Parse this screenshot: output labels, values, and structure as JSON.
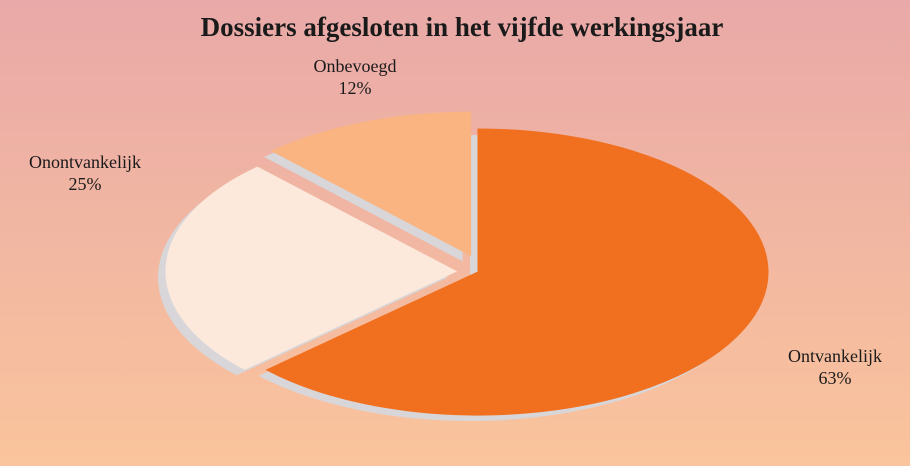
{
  "chart_data": {
    "type": "pie",
    "title": "Dossiers afgesloten in het vijfde werkingsjaar",
    "categories": [
      "Ontvankelijk",
      "Onontvankelijk",
      "Onbevoegd"
    ],
    "values": [
      63,
      25,
      12
    ],
    "value_labels": [
      "63%",
      "25%",
      "12%"
    ],
    "colors": [
      "#f07020",
      "#fde9dc",
      "#f9b482"
    ]
  }
}
